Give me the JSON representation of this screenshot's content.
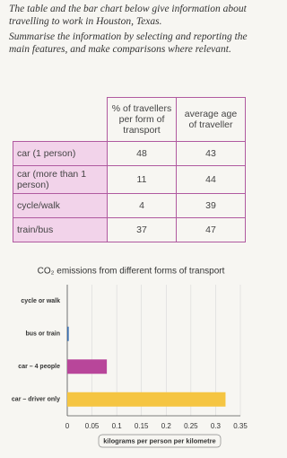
{
  "instructions": [
    "The table and the bar chart below give information about travelling to work in Houston, Texas.",
    "Summarise the information by selecting and reporting the main features, and make comparisons where relevant."
  ],
  "table": {
    "header": [
      "% of travellers per form of transport",
      "average age of traveller"
    ],
    "rows": [
      [
        "car (1 person)",
        48,
        43
      ],
      [
        "car (more than 1 person)",
        11,
        44
      ],
      [
        "cycle/walk",
        4,
        39
      ],
      [
        "train/bus",
        37,
        47
      ]
    ]
  },
  "chart_data": {
    "type": "hbar",
    "title": "CO₂ emissions from different forms of transport",
    "categories": [
      "cycle or walk",
      "bus or train",
      "car – 4 people",
      "car – driver only"
    ],
    "values": [
      0,
      0.003,
      0.08,
      0.32
    ],
    "colors": [
      "#888888",
      "#3a6fb0",
      "#b8469a",
      "#f5c542"
    ],
    "xlabel": "kilograms per person per kilometre",
    "xlim": [
      0,
      0.35
    ],
    "xticks": [
      0,
      0.05,
      0.1,
      0.15,
      0.2,
      0.25,
      0.3,
      0.35
    ],
    "grid": true
  }
}
